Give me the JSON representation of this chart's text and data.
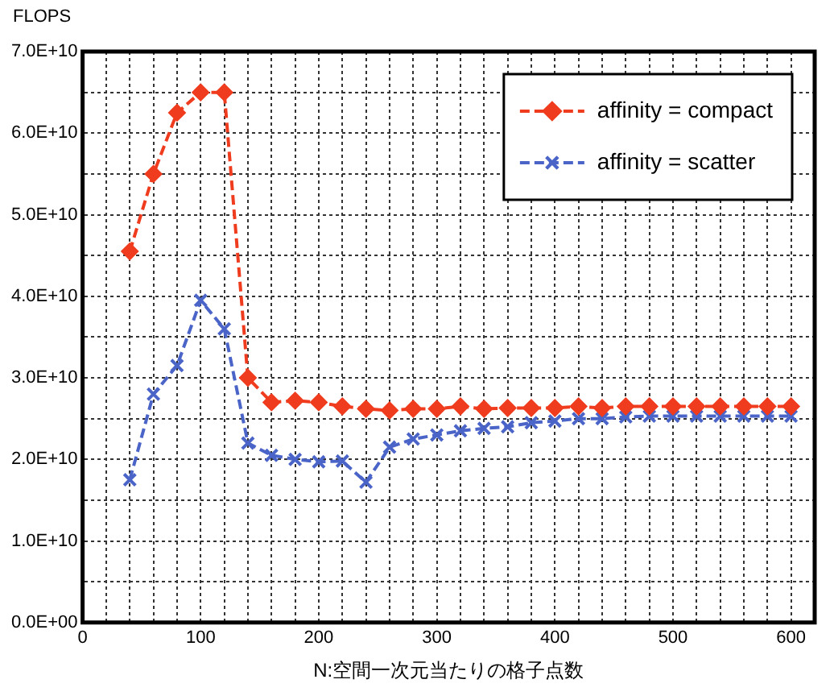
{
  "chart_data": {
    "type": "line",
    "ylabel": "FLOPS",
    "xlabel": "N:空間一次元当たりの格子点数",
    "x": [
      40,
      60,
      80,
      100,
      120,
      140,
      160,
      180,
      200,
      220,
      240,
      260,
      280,
      300,
      320,
      340,
      360,
      380,
      400,
      420,
      440,
      460,
      480,
      500,
      520,
      540,
      560,
      580,
      600
    ],
    "series": [
      {
        "name": "affinity = compact",
        "color": "#f03c1e",
        "marker": "diamond",
        "values": [
          45500000000.0,
          55000000000.0,
          62500000000.0,
          65000000000.0,
          65000000000.0,
          30000000000.0,
          27000000000.0,
          27200000000.0,
          27000000000.0,
          26500000000.0,
          26200000000.0,
          26000000000.0,
          26200000000.0,
          26200000000.0,
          26500000000.0,
          26200000000.0,
          26300000000.0,
          26300000000.0,
          26300000000.0,
          26500000000.0,
          26300000000.0,
          26500000000.0,
          26500000000.0,
          26500000000.0,
          26500000000.0,
          26500000000.0,
          26500000000.0,
          26500000000.0,
          26500000000.0
        ]
      },
      {
        "name": "affinity = scatter",
        "color": "#4a64c8",
        "marker": "cross",
        "values": [
          17500000000.0,
          28000000000.0,
          31500000000.0,
          39500000000.0,
          36000000000.0,
          22000000000.0,
          20500000000.0,
          20000000000.0,
          19700000000.0,
          19800000000.0,
          17200000000.0,
          21500000000.0,
          22500000000.0,
          23000000000.0,
          23500000000.0,
          23800000000.0,
          24000000000.0,
          24500000000.0,
          24700000000.0,
          25000000000.0,
          25000000000.0,
          25200000000.0,
          25300000000.0,
          25300000000.0,
          25300000000.0,
          25300000000.0,
          25300000000.0,
          25300000000.0,
          25300000000.0
        ]
      }
    ],
    "line_style": "dashed",
    "grid": true,
    "legend": "top right",
    "xlim": [
      0,
      620
    ],
    "xticks": [
      0,
      {
        "value": 20,
        "label": null
      },
      {
        "value": 40,
        "label": null
      },
      {
        "value": 60,
        "label": null
      },
      {
        "value": 80,
        "label": null
      },
      100,
      {
        "value": 120,
        "label": null
      },
      {
        "value": 140,
        "label": null
      },
      {
        "value": 160,
        "label": null
      },
      {
        "value": 180,
        "label": null
      },
      200,
      {
        "value": 220,
        "label": null
      },
      {
        "value": 240,
        "label": null
      },
      {
        "value": 260,
        "label": null
      },
      {
        "value": 280,
        "label": null
      },
      300,
      {
        "value": 320,
        "label": null
      },
      {
        "value": 340,
        "label": null
      },
      {
        "value": 360,
        "label": null
      },
      {
        "value": 380,
        "label": null
      },
      400,
      {
        "value": 420,
        "label": null
      },
      {
        "value": 440,
        "label": null
      },
      {
        "value": 460,
        "label": null
      },
      {
        "value": 480,
        "label": null
      },
      500,
      {
        "value": 520,
        "label": null
      },
      {
        "value": 540,
        "label": null
      },
      {
        "value": 560,
        "label": null
      },
      {
        "value": 580,
        "label": null
      },
      600
    ],
    "ylim": [
      0,
      70000000000.0
    ],
    "yticks": [
      {
        "value": 0,
        "label": "0.0E+00"
      },
      {
        "value": 5000000000.0,
        "label": null
      },
      {
        "value": 10000000000.0,
        "label": "1.0E+10"
      },
      {
        "value": 15000000000.0,
        "label": null
      },
      {
        "value": 20000000000.0,
        "label": "2.0E+10"
      },
      {
        "value": 25000000000.0,
        "label": null
      },
      {
        "value": 30000000000.0,
        "label": "3.0E+10"
      },
      {
        "value": 35000000000.0,
        "label": null
      },
      {
        "value": 40000000000.0,
        "label": "4.0E+10"
      },
      {
        "value": 45000000000.0,
        "label": null
      },
      {
        "value": 50000000000.0,
        "label": "5.0E+10"
      },
      {
        "value": 55000000000.0,
        "label": null
      },
      {
        "value": 60000000000.0,
        "label": "6.0E+10"
      },
      {
        "value": 65000000000.0,
        "label": null
      },
      {
        "value": 70000000000.0,
        "label": "7.0E+10"
      }
    ]
  }
}
